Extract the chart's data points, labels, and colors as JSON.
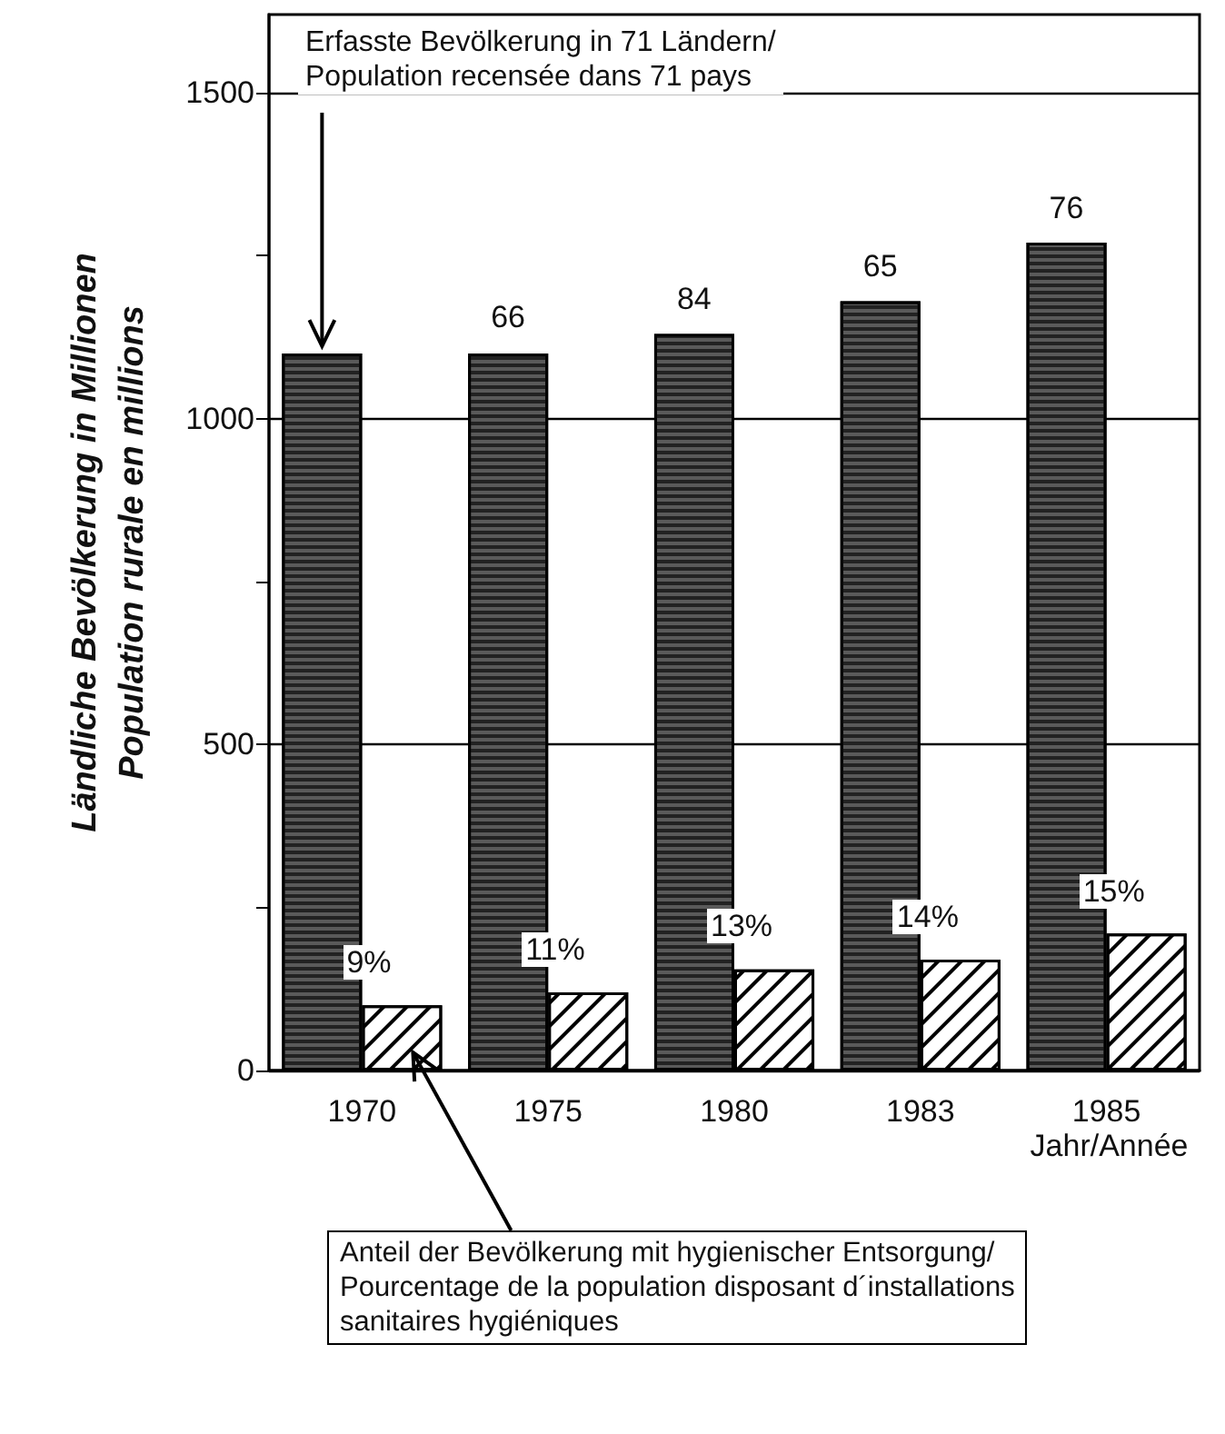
{
  "chart_data": {
    "type": "bar",
    "categories": [
      "1970",
      "1975",
      "1980",
      "1983",
      "1985"
    ],
    "xlabel": "Jahr/Année",
    "ylabel": "Ländliche Bevölkerung in Millionen\nPopulation rurale en millions",
    "ylim": [
      0,
      1620
    ],
    "yticks": [
      0,
      {
        "value": 250,
        "label": null
      },
      500,
      {
        "value": 750,
        "label": null
      },
      1000,
      {
        "value": 1250,
        "label": null
      },
      1500
    ],
    "grid": "y",
    "series": [
      {
        "color": "#5a5a5a",
        "values": [
          1100,
          1100,
          1130,
          1180,
          1270
        ]
      },
      {
        "color": "#ffffff",
        "values": [
          100,
          120,
          155,
          170,
          210
        ]
      }
    ],
    "annotations": [
      "Erfasste Bevölkerung in 71 Ländern/\nPopulation recensée dans 71 pays",
      "Anteil der Bevölkerung mit hygienischer Entsorgung/\nPourcentage de la population disposant d´installations\nsanitaires hygiéniques",
      {
        "text": "66",
        "x": "1975",
        "y": 1100
      },
      {
        "text": "84",
        "x": "1980",
        "y": 1130
      },
      {
        "text": "65",
        "x": "1983",
        "y": 1180
      },
      {
        "text": "76",
        "x": "1985",
        "y": 1270
      },
      {
        "text": "9%",
        "x": "1970",
        "y": 100
      },
      {
        "text": "11%",
        "x": "1975",
        "y": 120
      },
      {
        "text": "13%",
        "x": "1980",
        "y": 155
      },
      {
        "text": "14%",
        "x": "1983",
        "y": 170
      },
      {
        "text": "15%",
        "x": "1985",
        "y": 210
      }
    ]
  }
}
